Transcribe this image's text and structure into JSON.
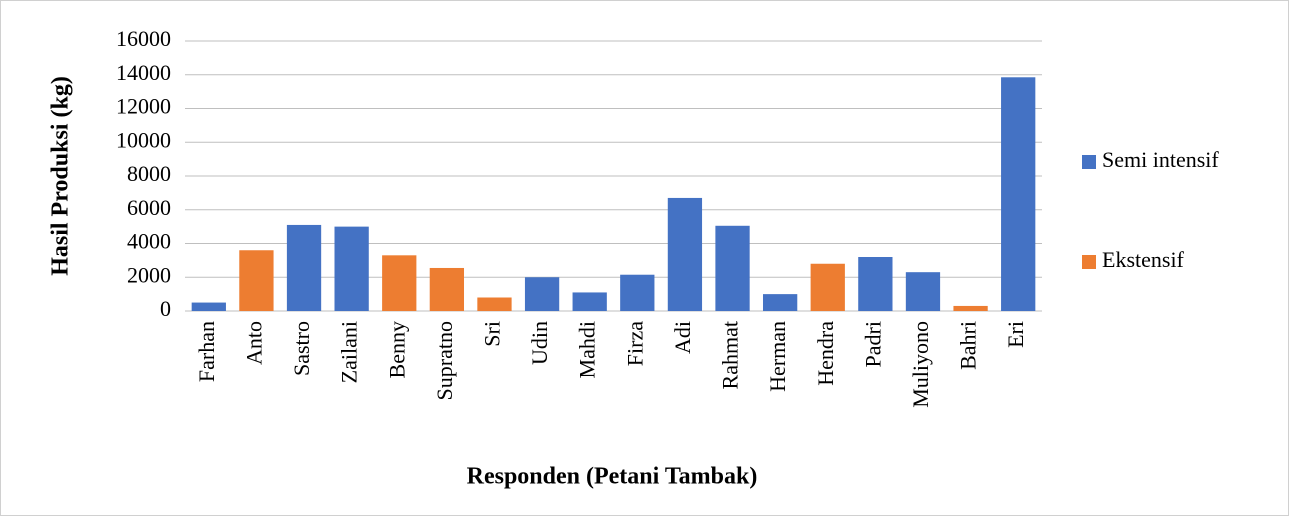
{
  "chart_data": {
    "type": "bar",
    "xlabel": "Responden (Petani Tambak)",
    "ylabel": "Hasil Produksi (kg)",
    "categories": [
      "Farhan",
      "Anto",
      "Sastro",
      "Zailani",
      "Benny",
      "Supratno",
      "Sri",
      "Udin",
      "Mahdi",
      "Firza",
      "Adi",
      "Rahmat",
      "Herman",
      "Hendra",
      "Padri",
      "Muliyono",
      "Bahri",
      "Eri"
    ],
    "series": [
      {
        "name": "Semi intensif",
        "color": "#4472c4",
        "values": [
          500,
          null,
          5100,
          5000,
          null,
          null,
          null,
          2000,
          1100,
          2150,
          6700,
          5050,
          1000,
          null,
          3200,
          2300,
          null,
          13850
        ]
      },
      {
        "name": "Ekstensif",
        "color": "#ed7d31",
        "values": [
          null,
          3600,
          null,
          null,
          3300,
          2550,
          800,
          null,
          null,
          null,
          null,
          null,
          null,
          2800,
          null,
          null,
          300,
          null
        ]
      }
    ],
    "ylim": [
      0,
      16000
    ],
    "yticks": [
      0,
      2000,
      4000,
      6000,
      8000,
      10000,
      12000,
      14000,
      16000
    ],
    "grid": true,
    "legend": "right"
  }
}
